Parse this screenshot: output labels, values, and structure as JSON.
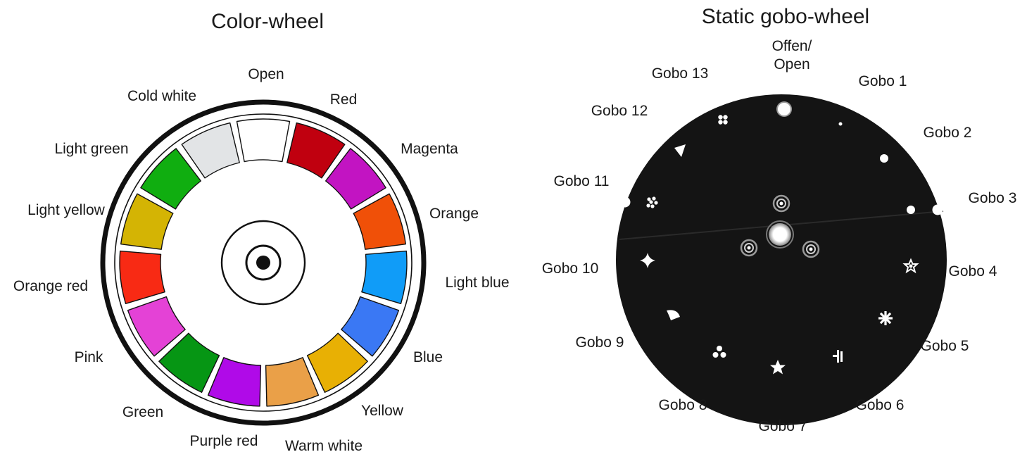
{
  "color_wheel": {
    "title": "Color-wheel",
    "slots": [
      {
        "label": "Open",
        "color": "#ffffff"
      },
      {
        "label": "Red",
        "color": "#c0000f"
      },
      {
        "label": "Magenta",
        "color": "#c214c2"
      },
      {
        "label": "Orange",
        "color": "#f05008"
      },
      {
        "label": "Light blue",
        "color": "#109cf8"
      },
      {
        "label": "Blue",
        "color": "#3a78f4"
      },
      {
        "label": "Yellow",
        "color": "#e8b004"
      },
      {
        "label": "Warm white",
        "color": "#eaa048"
      },
      {
        "label": "Purple red",
        "color": "#b00ae8"
      },
      {
        "label": "Green",
        "color": "#069614"
      },
      {
        "label": "Pink",
        "color": "#e442d6"
      },
      {
        "label": "Orange red",
        "color": "#f82a14"
      },
      {
        "label": "Light yellow",
        "color": "#d4b404"
      },
      {
        "label": "Light green",
        "color": "#10ae10"
      },
      {
        "label": "Cold white",
        "color": "#e2e4e6"
      }
    ]
  },
  "gobo_wheel": {
    "title": "Static gobo-wheel",
    "slots": [
      {
        "label_lines": [
          "Offen/",
          "Open"
        ],
        "icon": "open-dot-icon"
      },
      {
        "label_lines": [
          "Gobo 1"
        ],
        "icon": "small-dot-icon"
      },
      {
        "label_lines": [
          "Gobo 2"
        ],
        "icon": "dot-icon"
      },
      {
        "label_lines": [
          "Gobo 3"
        ],
        "icon": "dot-icon"
      },
      {
        "label_lines": [
          "Gobo 4"
        ],
        "icon": "star-outline-icon"
      },
      {
        "label_lines": [
          "Gobo 5"
        ],
        "icon": "asterisk-icon"
      },
      {
        "label_lines": [
          "Gobo 6"
        ],
        "icon": "bars-icon"
      },
      {
        "label_lines": [
          "Gobo 7"
        ],
        "icon": "star-icon"
      },
      {
        "label_lines": [
          "Gobo 8"
        ],
        "icon": "three-dots-icon"
      },
      {
        "label_lines": [
          "Gobo 9"
        ],
        "icon": "leaf-icon"
      },
      {
        "label_lines": [
          "Gobo 10"
        ],
        "icon": "four-point-star-icon"
      },
      {
        "label_lines": [
          "Gobo 11"
        ],
        "icon": "dot-cluster-icon"
      },
      {
        "label_lines": [
          "Gobo 12"
        ],
        "icon": "triangle-icon"
      },
      {
        "label_lines": [
          "Gobo 13"
        ],
        "icon": "four-dots-icon"
      }
    ]
  }
}
